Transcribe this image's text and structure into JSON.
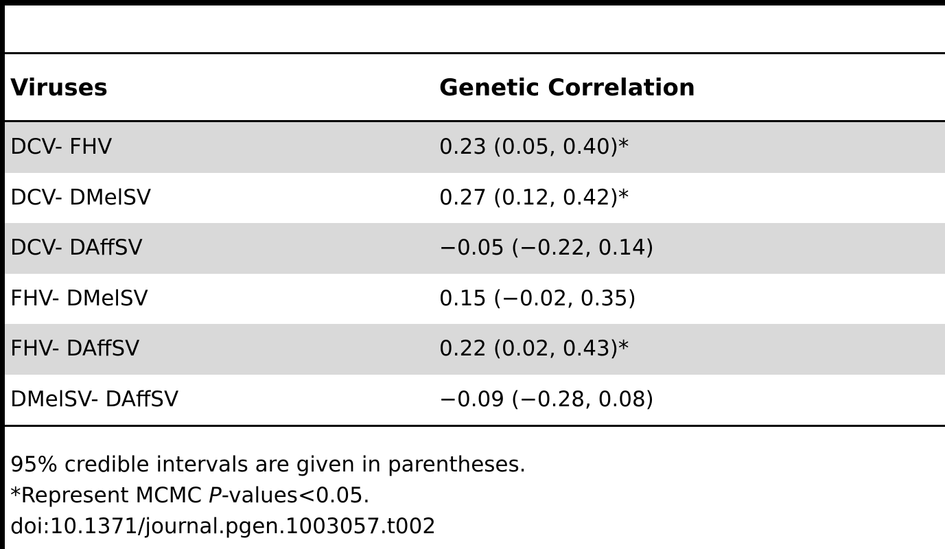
{
  "table": {
    "headers": [
      "Viruses",
      "Genetic Correlation"
    ],
    "rows": [
      {
        "viruses": "DCV- FHV",
        "correlation": "0.23 (0.05, 0.40)*",
        "shaded": true
      },
      {
        "viruses": "DCV- DMelSV",
        "correlation": "0.27 (0.12, 0.42)*",
        "shaded": false
      },
      {
        "viruses": "DCV- DAffSV",
        "correlation": "−0.05 (−0.22, 0.14)",
        "shaded": true
      },
      {
        "viruses": "FHV- DMelSV",
        "correlation": "0.15 (−0.02, 0.35)",
        "shaded": false
      },
      {
        "viruses": "FHV- DAffSV",
        "correlation": "0.22 (0.02, 0.43)*",
        "shaded": true
      },
      {
        "viruses": "DMelSV- DAffSV",
        "correlation": "−0.09 (−0.28, 0.08)",
        "shaded": false
      }
    ]
  },
  "footnotes": {
    "line1": "95% credible intervals are given in parentheses.",
    "line2_prefix": "*Represent MCMC ",
    "line2_italic": "P",
    "line2_suffix": "-values<0.05.",
    "doi": "doi:10.1371/journal.pgen.1003057.t002"
  },
  "colors": {
    "shaded_row": "#d9d9d9",
    "rule": "#000000"
  }
}
